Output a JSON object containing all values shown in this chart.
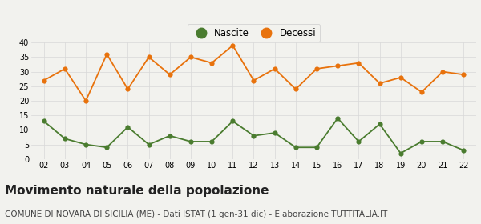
{
  "years": [
    2,
    3,
    4,
    5,
    6,
    7,
    8,
    9,
    10,
    11,
    12,
    13,
    14,
    15,
    16,
    17,
    18,
    19,
    20,
    21,
    22
  ],
  "nascite": [
    13,
    7,
    5,
    4,
    11,
    5,
    8,
    6,
    6,
    13,
    8,
    9,
    4,
    4,
    14,
    6,
    12,
    2,
    6,
    6,
    3
  ],
  "decessi": [
    27,
    31,
    20,
    36,
    24,
    35,
    29,
    35,
    33,
    39,
    27,
    31,
    24,
    31,
    32,
    33,
    26,
    28,
    23,
    30,
    29
  ],
  "nascite_color": "#4a7c2f",
  "decessi_color": "#e8720c",
  "background_color": "#f2f2ee",
  "grid_color": "#d8d8d8",
  "title": "Movimento naturale della popolazione",
  "subtitle": "COMUNE DI NOVARA DI SICILIA (ME) - Dati ISTAT (1 gen-31 dic) - Elaborazione TUTTITALIA.IT",
  "ylim": [
    0,
    40
  ],
  "yticks": [
    0,
    5,
    10,
    15,
    20,
    25,
    30,
    35,
    40
  ],
  "legend_nascite": "Nascite",
  "legend_decessi": "Decessi",
  "title_fontsize": 11,
  "subtitle_fontsize": 7.5,
  "tick_fontsize": 7,
  "marker_size": 4.5,
  "linewidth": 1.3
}
